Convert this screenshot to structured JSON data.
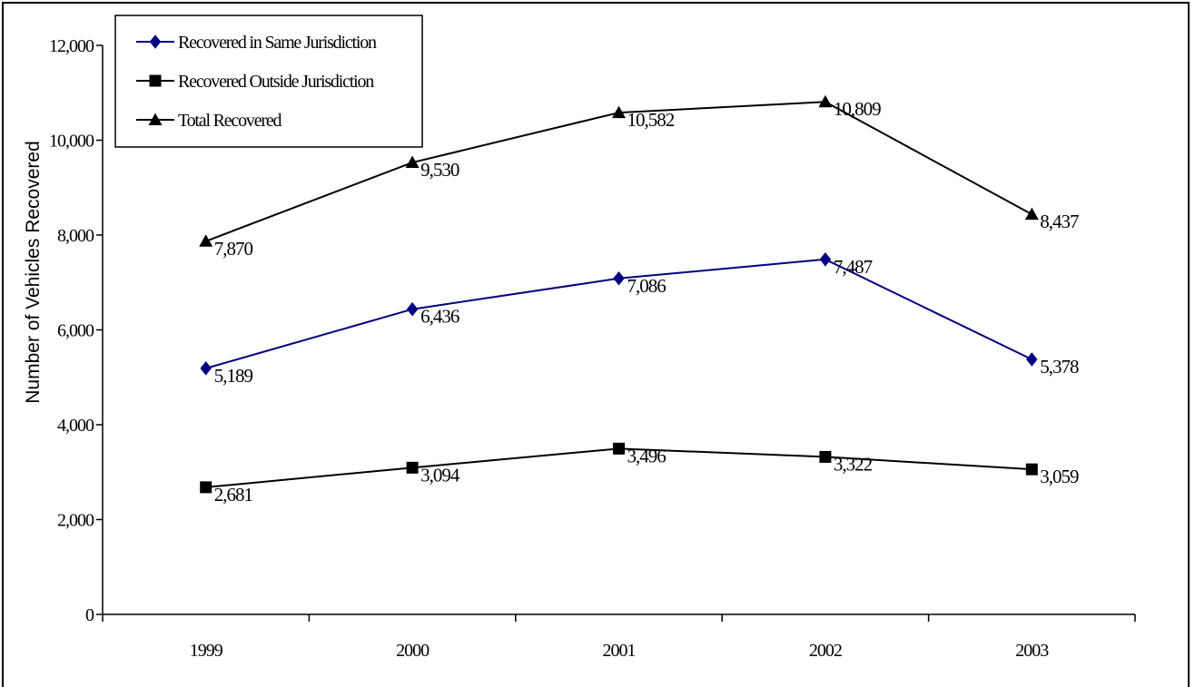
{
  "chart_data": {
    "type": "line",
    "title": "",
    "xlabel": "",
    "ylabel": "Number of Vehicles Recovered",
    "categories": [
      "1999",
      "2000",
      "2001",
      "2002",
      "2003"
    ],
    "ylim": [
      0,
      12000
    ],
    "yticks": [
      0,
      2000,
      4000,
      6000,
      8000,
      10000,
      12000
    ],
    "ytick_labels": [
      "0",
      "2,000",
      "4,000",
      "6,000",
      "8,000",
      "10,000",
      "12,000"
    ],
    "grid": false,
    "legend_position": "top-left",
    "series": [
      {
        "name": "Recovered in Same Jurisdiction",
        "values": [
          5189,
          6436,
          7086,
          7487,
          5378
        ],
        "labels": [
          "5,189",
          "6,436",
          "7,086",
          "7,487",
          "5,378"
        ],
        "color": "#000080",
        "marker": "diamond"
      },
      {
        "name": "Recovered Outside Jurisdiction",
        "values": [
          2681,
          3094,
          3496,
          3322,
          3059
        ],
        "labels": [
          "2,681",
          "3,094",
          "3,496",
          "3,322",
          "3,059"
        ],
        "color": "#000000",
        "marker": "square"
      },
      {
        "name": "Total Recovered",
        "values": [
          7870,
          9530,
          10582,
          10809,
          8437
        ],
        "labels": [
          "7,870",
          "9,530",
          "10,582",
          "10,809",
          "8,437"
        ],
        "color": "#000000",
        "marker": "triangle"
      }
    ]
  }
}
